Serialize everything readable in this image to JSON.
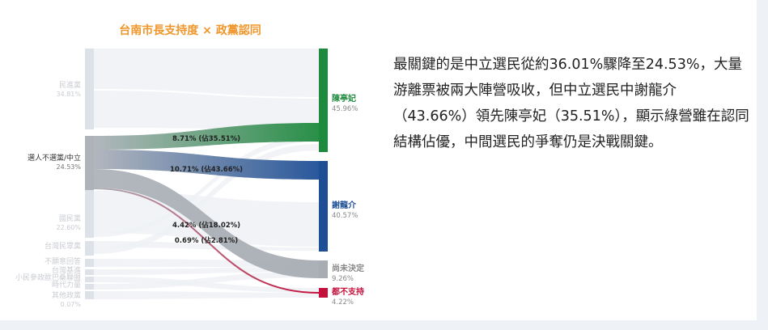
{
  "colors": {
    "title": "#f0962a",
    "gray_node": "#aeb3ba",
    "faint_node": "#dde2e8",
    "faint_label": "#c8ccd2",
    "green": "#1e8a3e",
    "blue": "#1e4f96",
    "gray_target": "#a8adb4",
    "red": "#c4103a"
  },
  "commentary": "最關鍵的是中立選民從約36.01%驟降至24.53%，大量游離票被兩大陣營吸收，但中立選民中謝龍介（43.66%）領先陳亭妃（35.51%），顯示綠營雖在認同結構佔優，中間選民的爭奪仍是決戰關鍵。",
  "chart_data": {
    "type": "sankey",
    "title": "台南市長支持度 × 政黨認同",
    "sources": [
      {
        "label": "民進黨",
        "value": "34.81%",
        "highlight": false
      },
      {
        "label": "選人不選黨/中立",
        "value": "24.53%",
        "highlight": true
      },
      {
        "label": "國民黨",
        "value": "22.60%",
        "highlight": false
      },
      {
        "label": "台灣民眾黨",
        "value": "",
        "highlight": false
      },
      {
        "label": "不願意回答",
        "value": "",
        "highlight": false
      },
      {
        "label": "台灣基進",
        "value": "",
        "highlight": false
      },
      {
        "label": "小民參政歐巴桑聯盟",
        "value": "",
        "highlight": false
      },
      {
        "label": "時代力量",
        "value": "",
        "highlight": false
      },
      {
        "label": "其他政黨",
        "value": "0.07%",
        "highlight": false
      }
    ],
    "targets": [
      {
        "label": "陳亭妃",
        "value": "45.96%",
        "color": "#1e8a3e"
      },
      {
        "label": "謝龍介",
        "value": "40.57%",
        "color": "#1e4f96"
      },
      {
        "label": "尚未決定",
        "value": "9.26%",
        "color": "#a8adb4"
      },
      {
        "label": "都不支持",
        "value": "4.22%",
        "color": "#c4103a"
      }
    ],
    "highlighted_flows": [
      {
        "from": "選人不選黨/中立",
        "to": "陳亭妃",
        "value": 8.71,
        "label": "8.71% (佔35.51%)"
      },
      {
        "from": "選人不選黨/中立",
        "to": "謝龍介",
        "value": 10.71,
        "label": "10.71% (佔43.66%)"
      },
      {
        "from": "選人不選黨/中立",
        "to": "尚未決定",
        "value": 4.42,
        "label": "4.42% (佔18.02%)"
      },
      {
        "from": "選人不選黨/中立",
        "to": "都不支持",
        "value": 0.69,
        "label": "0.69% (佔2.81%)"
      }
    ]
  }
}
